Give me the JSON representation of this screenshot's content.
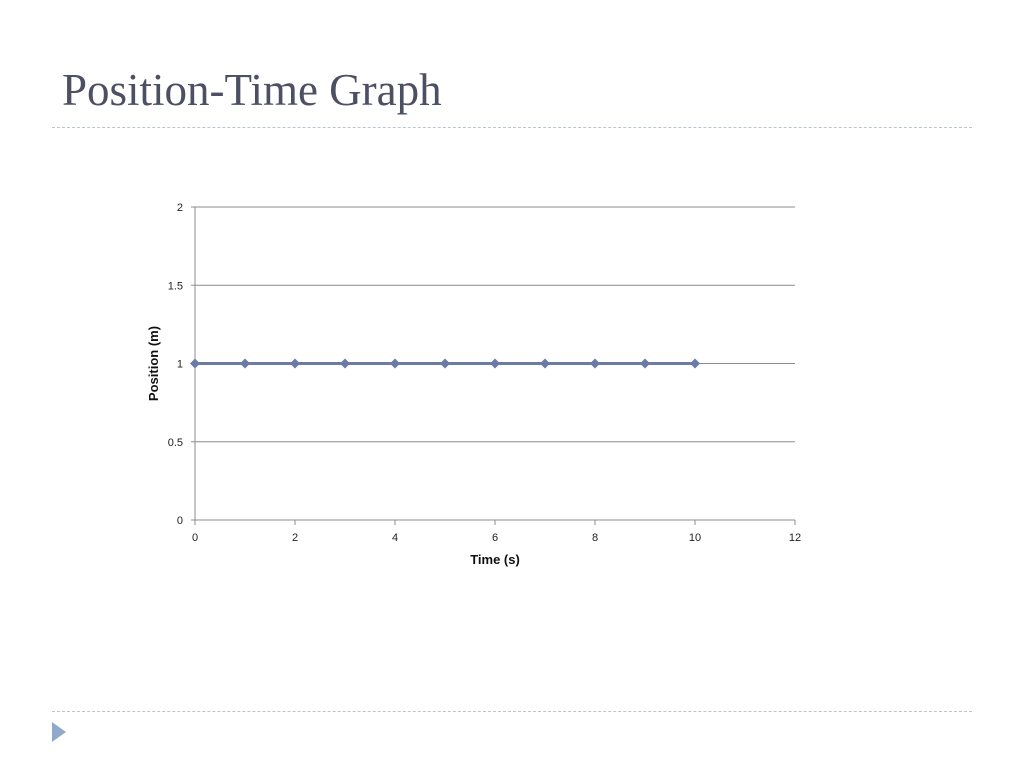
{
  "slide": {
    "title": "Position-Time Graph"
  },
  "colors": {
    "title": "#4d4f63",
    "rule": "#b9c6d1",
    "bullet": "#8fabc9",
    "series": "#6b7ba8",
    "gridline": "#8c8c8c"
  },
  "icons": {
    "bullet": "triangle-bullet-icon"
  },
  "chart_data": {
    "type": "line",
    "title": "",
    "xlabel": "Time (s)",
    "ylabel": "Position (m)",
    "xlim": [
      0,
      12
    ],
    "ylim": [
      0,
      2
    ],
    "x_ticks": [
      "0",
      "2",
      "4",
      "6",
      "8",
      "10",
      "12"
    ],
    "y_ticks": [
      "0",
      "0.5",
      "1",
      "1.5",
      "2"
    ],
    "grid": "horizontal",
    "legend": "none",
    "marker": "diamond",
    "series": [
      {
        "x": [
          0,
          1,
          2,
          3,
          4,
          5,
          6,
          7,
          8,
          9,
          10
        ],
        "y": [
          1,
          1,
          1,
          1,
          1,
          1,
          1,
          1,
          1,
          1,
          1
        ]
      }
    ]
  }
}
